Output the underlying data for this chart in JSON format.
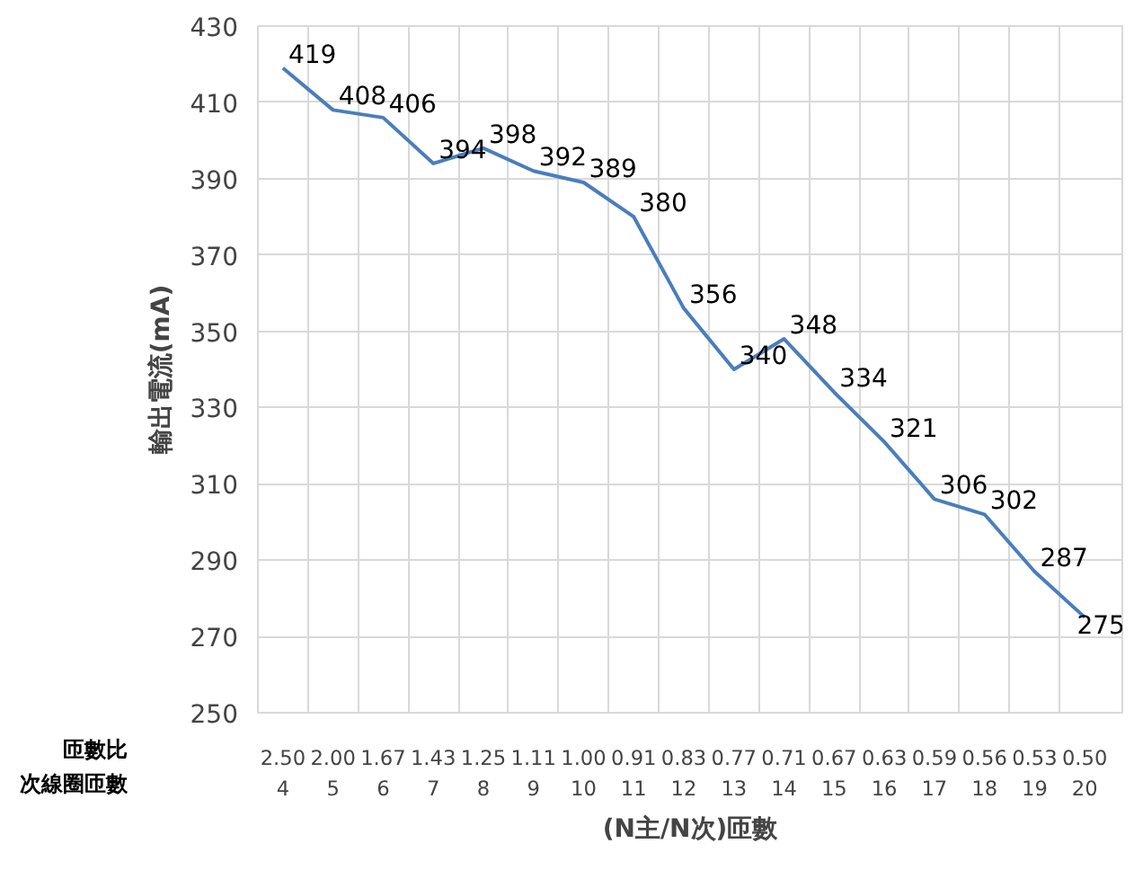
{
  "chart_data": {
    "type": "line",
    "ylabel": "輸出電流(mA)",
    "xlabel": "(N主/N次)匝數",
    "categories": [
      "2.50\n4",
      "2.00\n5",
      "1.67\n6",
      "1.43\n7",
      "1.25\n8",
      "1.11\n9",
      "1.00\n10",
      "0.91\n11",
      "0.83\n12",
      "0.77\n13",
      "0.71\n14",
      "0.67\n15",
      "0.63\n16",
      "0.59\n17",
      "0.56\n18",
      "0.53\n19",
      "0.50\n20"
    ],
    "series": [
      {
        "color": "#4a7ebb",
        "values": [
          419,
          408,
          406,
          394,
          398,
          392,
          389,
          380,
          356,
          340,
          348,
          334,
          321,
          306,
          302,
          287,
          275
        ]
      }
    ],
    "ylim": [
      250,
      430
    ],
    "yticks": [
      250,
      270,
      290,
      310,
      330,
      350,
      370,
      390,
      410,
      430
    ],
    "grid": true,
    "data_labels": true,
    "marker": "none",
    "line_style": "solid",
    "annotations": [
      "匝數比",
      "次線圈匝數"
    ]
  }
}
